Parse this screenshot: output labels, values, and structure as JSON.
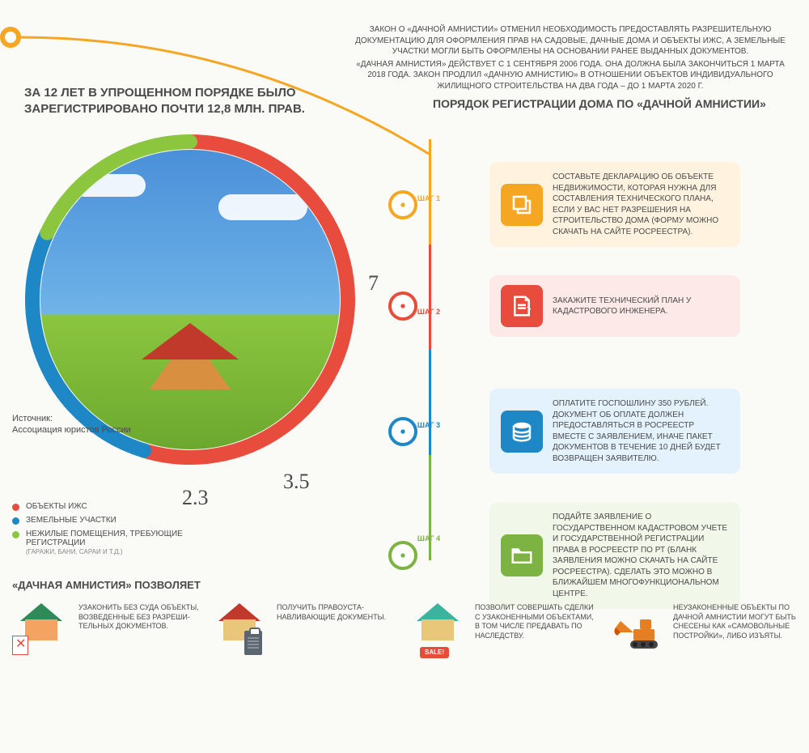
{
  "intro": {
    "p1": "ЗАКОН О «ДАЧНОЙ АМНИСТИИ» ОТМЕНИЛ НЕОБХОДИМОСТЬ ПРЕДОСТАВЛЯТЬ РАЗРЕШИТЕЛЬНУЮ ДОКУМЕНТАЦИЮ ДЛЯ ОФОРМЛЕНИЯ ПРАВ НА САДОВЫЕ, ДАЧНЫЕ ДОМА И ОБЪЕКТЫ ИЖС, А ЗЕМЕЛЬНЫЕ УЧАСТКИ МОГЛИ БЫТЬ ОФОРМЛЕНЫ НА ОСНОВАНИИ РАНЕЕ ВЫДАННЫХ ДОКУМЕНТОВ.",
    "p2": "«ДАЧНАЯ АМНИСТИЯ» ДЕЙСТВУЕТ С 1 СЕНТЯБРЯ 2006 ГОДА. ОНА ДОЛЖНА БЫЛА ЗАКОНЧИТЬСЯ 1 МАРТА 2018 ГОДА. ЗАКОН ПРОДЛИЛ «ДАЧНУЮ АМНИСТИЮ» В ОТНОШЕНИИ ОБЪЕКТОВ ИНДИВИДУАЛЬНОГО ЖИЛИЩНОГО СТРОИТЕЛЬСТВА НА ДВА ГОДА – ДО 1 МАРТА 2020 Г."
  },
  "headline": "ЗА 12 ЛЕТ В УПРОЩЕННОМ ПОРЯДКЕ БЫЛО ЗАРЕГИСТРИРОВАНО ПОЧТИ 12,8 МЛН. ПРАВ.",
  "section_title": "ПОРЯДОК РЕГИСТРАЦИИ ДОМА ПО «ДАЧНОЙ АМНИСТИИ»",
  "donut": {
    "values": {
      "v1": "7",
      "v2": "3.5",
      "v3": "2.3"
    },
    "colors": {
      "c1": "#e74c3c",
      "c2": "#1e88c7",
      "c3": "#8cc63f"
    },
    "sweeps": {
      "start1": -90,
      "start2": 107,
      "start3": 205,
      "end": 270
    },
    "stroke_width": 18
  },
  "source": {
    "label": "Источник:",
    "value": "Ассоциация юристов России"
  },
  "legend": [
    {
      "color": "#e74c3c",
      "label": "ОБЪЕКТЫ ИЖС",
      "sub": ""
    },
    {
      "color": "#1e88c7",
      "label": "ЗЕМЕЛЬНЫЕ УЧАСТКИ",
      "sub": ""
    },
    {
      "color": "#8cc63f",
      "label": "НЕЖИЛЫЕ ПОМЕЩЕНИЯ, ТРЕБУЮЩИЕ РЕГИСТРАЦИИ",
      "sub": "(ГАРАЖИ, БАНИ, САРАИ И Т.Д.)"
    }
  ],
  "steps": [
    {
      "n": "ШАГ 1",
      "color": "#f5a623",
      "text": "СОСТАВЬТЕ ДЕКЛАРАЦИЮ ОБ ОБЪЕКТЕ НЕДВИЖИМОСТИ, КОТОРАЯ НУЖНА ДЛЯ СОСТАВЛЕНИЯ ТЕХНИЧЕСКОГО ПЛАНА, ЕСЛИ У ВАС НЕТ РАЗРЕШЕНИЯ НА СТРОИТЕЛЬСТВО ДОМА (ФОРМУ МОЖНО СКАЧАТЬ НА САЙТЕ РОСРЕЕСТРА)."
    },
    {
      "n": "ШАГ 2",
      "color": "#e74c3c",
      "text": "ЗАКАЖИТЕ ТЕХНИЧЕСКИЙ ПЛАН У КАДАСТРОВОГО ИНЖЕНЕРА."
    },
    {
      "n": "ШАГ 3",
      "color": "#1e88c7",
      "text": "ОПЛАТИТЕ ГОСПОШЛИНУ 350 РУБЛЕЙ. ДОКУМЕНТ ОБ ОПЛАТЕ ДОЛЖЕН ПРЕДОСТАВЛЯТЬСЯ В РОСРЕЕСТР ВМЕСТЕ С ЗАЯВЛЕНИЕМ, ИНАЧЕ ПАКЕТ ДОКУМЕНТОВ В ТЕЧЕНИЕ 10 ДНЕЙ БУДЕТ ВОЗВРАЩЕН ЗАЯВИТЕЛЮ."
    },
    {
      "n": "ШАГ 4",
      "color": "#7cb342",
      "text": "ПОДАЙТЕ ЗАЯВЛЕНИЕ О ГОСУДАРСТВЕННОМ КАДАСТРОВОМ УЧЕТЕ И ГОСУДАРСТВЕННОЙ РЕГИСТРАЦИИ ПРАВА В РОСРЕЕСТР ПО РТ (БЛАНК ЗАЯВЛЕНИЯ МОЖНО СКАЧАТЬ НА САЙТЕ РОСРЕЕСТРА). СДЕЛАТЬ ЭТО МОЖНО В БЛИЖАЙШЕМ МНОГОФУНКЦИОНАЛЬНОМ ЦЕНТРЕ."
    }
  ],
  "allows_title": "«ДАЧНАЯ АМНИСТИЯ» ПОЗВОЛЯЕТ",
  "allows": [
    {
      "text": "УЗАКОНИТЬ БЕЗ СУДА ОБЪЕКТЫ, ВОЗВЕДЕННЫЕ БЕЗ РАЗРЕШИ-ТЕЛЬНЫХ ДОКУМЕНТОВ.",
      "roof": "#2e8b57",
      "wall": "#f4a460"
    },
    {
      "text": "ПОЛУЧИТЬ ПРАВОУСТА-НАВЛИВАЮЩИЕ ДОКУМЕНТЫ.",
      "roof": "#c0392b",
      "wall": "#e8c77a"
    },
    {
      "text": "ПОЗВОЛИТ СОВЕРШАТЬ СДЕЛКИ С УЗАКОНЕННЫМИ ОБЪЕКТАМИ, В ТОМ ЧИСЛЕ ПРЕДАВАТЬ ПО НАСЛЕДСТВУ.",
      "roof": "#3bb39e",
      "wall": "#e8c77a",
      "sale": "SALE!"
    },
    {
      "text": "НЕУЗАКОНЕННЫЕ ОБЪЕКТЫ ПО ДАЧНОЙ АМНИСТИИ МОГУТ БЫТЬ СНЕСЕНЫ КАК «САМОВОЛЬНЫЕ ПОСТРОЙКИ», ЛИБО ИЗЪЯТЫ.",
      "roof": "#c0392b",
      "wall": "#e8c77a"
    }
  ]
}
